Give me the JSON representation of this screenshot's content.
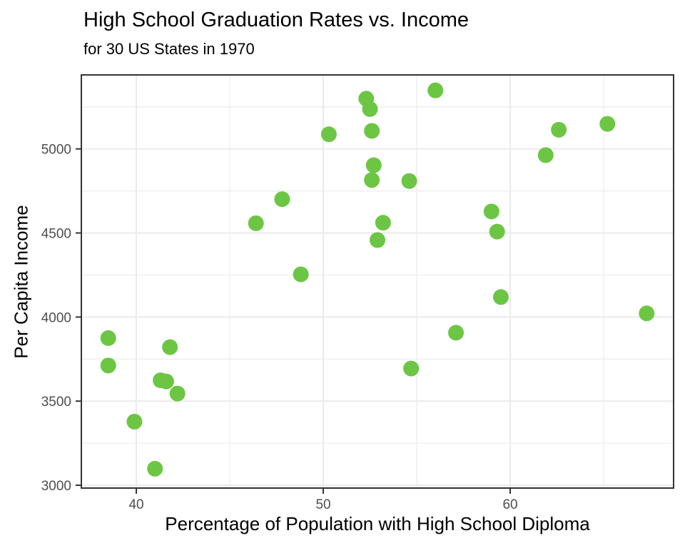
{
  "colors": {
    "background": "#FFFFFF",
    "grid": "#EBEBEB",
    "panel_border": "#333333",
    "tick_mark": "#333333",
    "tick_label": "#4D4D4D",
    "text": "#000000",
    "point": "#6CC644"
  },
  "chart_data": {
    "type": "scatter",
    "title": "High School Graduation Rates vs. Income",
    "subtitle": "for 30 US States in 1970",
    "xlabel": "Percentage of Population with High School Diploma",
    "ylabel": "Per Capita Income",
    "xlim": [
      37.06,
      68.74
    ],
    "ylim": [
      2983,
      5440
    ],
    "x_ticks": [
      40,
      50,
      60
    ],
    "y_ticks": [
      3000,
      3500,
      4000,
      4500,
      5000
    ],
    "x_minor_ticks": [
      45,
      55,
      65
    ],
    "y_minor_ticks": [
      3250,
      3750,
      4250,
      4750,
      5250
    ],
    "grid": true,
    "legend": "none",
    "point_radius": 11,
    "points": [
      {
        "x": 38.5,
        "y": 3875
      },
      {
        "x": 38.5,
        "y": 3712
      },
      {
        "x": 39.9,
        "y": 3378
      },
      {
        "x": 41.0,
        "y": 3098
      },
      {
        "x": 41.3,
        "y": 3624
      },
      {
        "x": 41.6,
        "y": 3617
      },
      {
        "x": 41.8,
        "y": 3821
      },
      {
        "x": 42.2,
        "y": 3545
      },
      {
        "x": 46.4,
        "y": 4558
      },
      {
        "x": 47.8,
        "y": 4701
      },
      {
        "x": 48.8,
        "y": 4254
      },
      {
        "x": 50.3,
        "y": 5087
      },
      {
        "x": 52.3,
        "y": 5299
      },
      {
        "x": 52.5,
        "y": 5237
      },
      {
        "x": 52.6,
        "y": 5107
      },
      {
        "x": 52.6,
        "y": 4815
      },
      {
        "x": 52.7,
        "y": 4903
      },
      {
        "x": 52.9,
        "y": 4458
      },
      {
        "x": 53.2,
        "y": 4561
      },
      {
        "x": 54.6,
        "y": 4809
      },
      {
        "x": 54.7,
        "y": 3694
      },
      {
        "x": 56.0,
        "y": 5348
      },
      {
        "x": 57.1,
        "y": 3907
      },
      {
        "x": 59.0,
        "y": 4628
      },
      {
        "x": 59.3,
        "y": 4508
      },
      {
        "x": 59.5,
        "y": 4119
      },
      {
        "x": 61.9,
        "y": 4963
      },
      {
        "x": 62.6,
        "y": 5114
      },
      {
        "x": 65.2,
        "y": 5149
      },
      {
        "x": 67.3,
        "y": 4022
      }
    ]
  }
}
